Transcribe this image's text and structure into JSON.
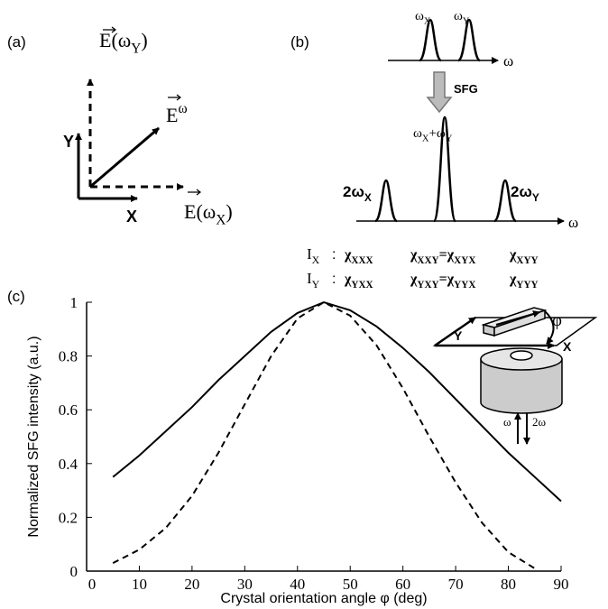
{
  "panels": {
    "a": "(a)",
    "b": "(b)",
    "c": "(c)"
  },
  "panel_a": {
    "axis_x": "X",
    "axis_y": "Y",
    "field_y": [
      {
        "text": "E(ω",
        "sub": "Y"
      },
      {
        "text": ")"
      }
    ],
    "field": [
      {
        "text": "E",
        "sup": "ω"
      }
    ],
    "field_x": [
      {
        "text": "E(ω",
        "sub": "X"
      },
      {
        "text": ")"
      }
    ]
  },
  "panel_b": {
    "input_axis": "ω",
    "input_peaks": [
      [
        {
          "text": "ω",
          "sub": "X"
        }
      ],
      [
        {
          "text": "ω",
          "sub": "Y"
        }
      ]
    ],
    "process": "SFG",
    "output_axis": "ω",
    "output_peaks": [
      [
        {
          "text": "2ω",
          "sub": "X"
        }
      ],
      [
        {
          "text": "ω",
          "sub": "X"
        },
        {
          "text": "+ω",
          "sub": "Y"
        }
      ],
      [
        {
          "text": "2ω",
          "sub": "Y"
        }
      ]
    ],
    "rows": [
      {
        "label": [
          {
            "text": "I",
            "sub": "X"
          }
        ],
        "sep": ":",
        "terms": [
          [
            {
              "text": "χ",
              "sub": "XXX"
            }
          ],
          [
            {
              "text": "χ",
              "sub": "XXY"
            },
            {
              "text": "=χ",
              "sub": "XYX"
            }
          ],
          [
            {
              "text": "χ",
              "sub": "XYY"
            }
          ]
        ]
      },
      {
        "label": [
          {
            "text": "I",
            "sub": "Y"
          }
        ],
        "sep": ":",
        "terms": [
          [
            {
              "text": "χ",
              "sub": "YXX"
            }
          ],
          [
            {
              "text": "χ",
              "sub": "YXY"
            },
            {
              "text": "=χ",
              "sub": "YYX"
            }
          ],
          [
            {
              "text": "χ",
              "sub": "YYY"
            }
          ]
        ]
      }
    ]
  },
  "inset": {
    "axis_y": "Y",
    "axis_x": "X",
    "angle": "φ",
    "input": "ω",
    "output": "2ω"
  },
  "chart_data": {
    "type": "line",
    "x_label": "Crystal orientation angle φ (deg)",
    "y_label": "Normalized SFG intensity (a.u.)",
    "x": [
      5,
      10,
      15,
      20,
      25,
      30,
      35,
      40,
      45,
      50,
      55,
      60,
      65,
      70,
      75,
      80,
      85,
      90
    ],
    "series": [
      {
        "color": "#000000",
        "style": "solid",
        "values": [
          0.35,
          0.43,
          0.52,
          0.61,
          0.71,
          0.8,
          0.89,
          0.96,
          1.0,
          0.97,
          0.91,
          0.83,
          0.74,
          0.64,
          0.54,
          0.44,
          0.35,
          0.26
        ]
      },
      {
        "color": "#000000",
        "style": "dashed",
        "values": [
          0.03,
          0.08,
          0.16,
          0.28,
          0.44,
          0.62,
          0.8,
          0.94,
          1.0,
          0.95,
          0.84,
          0.68,
          0.5,
          0.33,
          0.18,
          0.07,
          0.01,
          null
        ]
      }
    ],
    "xlim": [
      0,
      90
    ],
    "xticks": [
      0,
      10,
      20,
      30,
      40,
      50,
      60,
      70,
      80,
      90
    ],
    "ylim": [
      0,
      1
    ],
    "yticks": [
      0,
      0.2,
      0.4,
      0.6,
      0.8,
      1
    ]
  }
}
